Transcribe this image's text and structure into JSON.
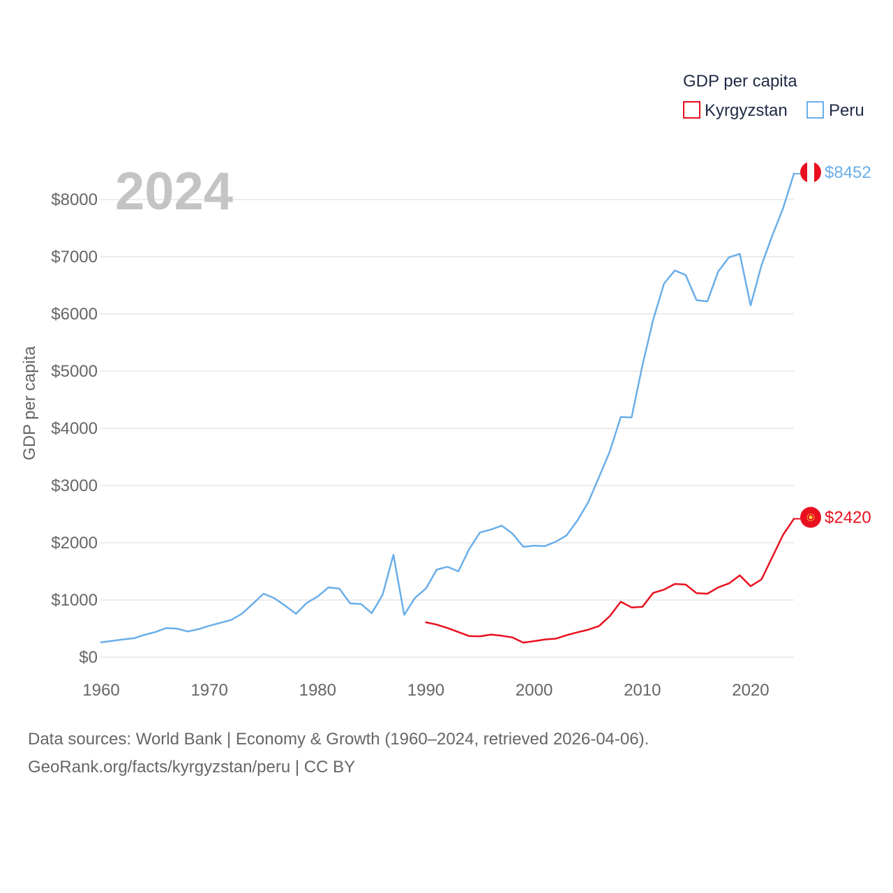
{
  "chart_data": {
    "type": "line",
    "title": "GDP per capita",
    "ylabel": "GDP per capita",
    "xlabel": "",
    "current_year_label": "2024",
    "xlim": [
      1960,
      2024
    ],
    "ylim": [
      0,
      8452
    ],
    "x_ticks": [
      1960,
      1970,
      1980,
      1990,
      2000,
      2010,
      2020
    ],
    "x_tick_labels": [
      "1960",
      "1970",
      "1980",
      "1990",
      "2000",
      "2010",
      "2020"
    ],
    "y_ticks": [
      0,
      1000,
      2000,
      3000,
      4000,
      5000,
      6000,
      7000,
      8000
    ],
    "y_tick_labels": [
      "$0",
      "$1000",
      "$2000",
      "$3000",
      "$4000",
      "$5000",
      "$6000",
      "$7000",
      "$8000"
    ],
    "grid": true,
    "legend_position": "top-right",
    "series": [
      {
        "name": "Kyrgyzstan",
        "color": "#e8101f",
        "end_label": "$2420",
        "flag_icon": "kyrgyzstan-flag-icon",
        "x": [
          1990,
          1991,
          1992,
          1993,
          1994,
          1995,
          1996,
          1997,
          1998,
          1999,
          2000,
          2001,
          2002,
          2003,
          2004,
          2005,
          2006,
          2007,
          2008,
          2009,
          2010,
          2011,
          2012,
          2013,
          2014,
          2015,
          2016,
          2017,
          2018,
          2019,
          2020,
          2021,
          2022,
          2023,
          2024
        ],
        "values": [
          610,
          570,
          510,
          440,
          370,
          365,
          395,
          375,
          345,
          255,
          280,
          310,
          325,
          385,
          435,
          480,
          545,
          720,
          970,
          870,
          880,
          1125,
          1180,
          1280,
          1270,
          1120,
          1110,
          1220,
          1290,
          1430,
          1240,
          1360,
          1750,
          2140,
          2420
        ]
      },
      {
        "name": "Peru",
        "color": "#6aaee8",
        "end_label": "$8452",
        "flag_icon": "peru-flag-icon",
        "x": [
          1960,
          1961,
          1962,
          1963,
          1964,
          1965,
          1966,
          1967,
          1968,
          1969,
          1970,
          1971,
          1972,
          1973,
          1974,
          1975,
          1976,
          1977,
          1978,
          1979,
          1980,
          1981,
          1982,
          1983,
          1984,
          1985,
          1986,
          1987,
          1988,
          1989,
          1990,
          1991,
          1992,
          1993,
          1994,
          1995,
          1996,
          1997,
          1998,
          1999,
          2000,
          2001,
          2002,
          2003,
          2004,
          2005,
          2006,
          2007,
          2008,
          2009,
          2010,
          2011,
          2012,
          2013,
          2014,
          2015,
          2016,
          2017,
          2018,
          2019,
          2020,
          2021,
          2022,
          2023,
          2024
        ],
        "values": [
          260,
          285,
          310,
          330,
          390,
          440,
          510,
          500,
          450,
          490,
          550,
          600,
          650,
          760,
          930,
          1110,
          1030,
          900,
          760,
          950,
          1060,
          1220,
          1200,
          940,
          930,
          770,
          1090,
          1790,
          740,
          1040,
          1200,
          1530,
          1580,
          1500,
          1890,
          2180,
          2230,
          2300,
          2160,
          1930,
          1950,
          1940,
          2020,
          2130,
          2390,
          2710,
          3150,
          3600,
          4200,
          4190,
          5100,
          5900,
          6530,
          6760,
          6680,
          6240,
          6220,
          6740,
          6990,
          7050,
          6150,
          6850,
          7370,
          7850,
          8452
        ]
      }
    ]
  },
  "footer": {
    "line1": "Data sources: World Bank | Economy & Growth (1960–2024, retrieved 2026-04-06).",
    "line2": "GeoRank.org/facts/kyrgyzstan/peru | CC BY"
  }
}
